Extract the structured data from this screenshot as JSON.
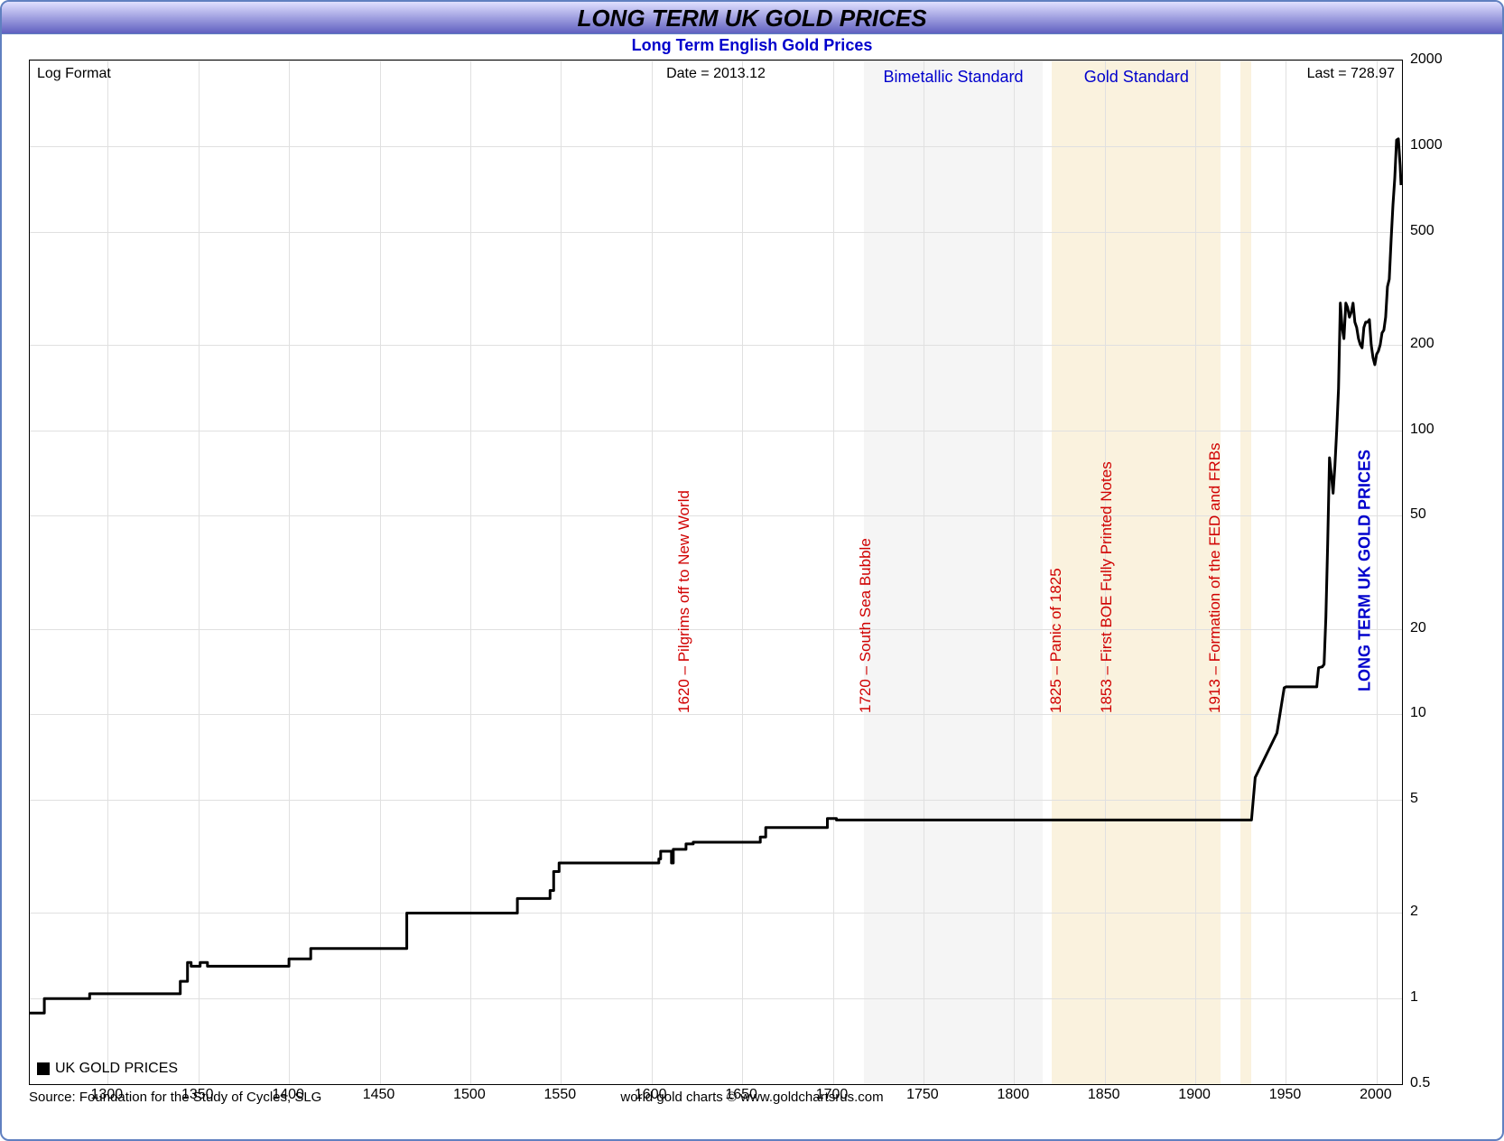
{
  "title": "LONG TERM UK GOLD PRICES",
  "subtitle": "Long Term English Gold Prices",
  "right_axis_label": "LONG TERM UK GOLD PRICES",
  "info": {
    "format_label": "Log Format",
    "date_label": "Date = 2013.12",
    "last_label": "Last = 728.97"
  },
  "legend": {
    "swatch_color": "#000000",
    "label": "UK GOLD PRICES"
  },
  "footer": {
    "source": "Source: Foundation for the Study of Cycles, SLG",
    "credit": "world gold charts © www.goldchartsrus.com"
  },
  "chart": {
    "type": "line",
    "scale_y": "log",
    "xlim": [
      1257,
      2014
    ],
    "ylim": [
      0.5,
      2000
    ],
    "line_color": "#000000",
    "line_width": 3,
    "background_color": "#ffffff",
    "grid_color": "#e0e0e0",
    "xticks": [
      1300,
      1350,
      1400,
      1450,
      1500,
      1550,
      1600,
      1650,
      1700,
      1750,
      1800,
      1850,
      1900,
      1950,
      2000
    ],
    "yticks": [
      0.5,
      1,
      2,
      5,
      10,
      20,
      50,
      100,
      200,
      500,
      1000,
      2000
    ],
    "eras": [
      {
        "label": "Bimetallic Standard",
        "start": 1717,
        "end": 1816,
        "color": "#efefef"
      },
      {
        "label": "Gold Standard",
        "start": 1821,
        "end": 1914,
        "color": "#f7e9c8"
      },
      {
        "label": "",
        "start": 1925,
        "end": 1931,
        "color": "#f7e9c8"
      }
    ],
    "events": [
      {
        "year": 1620,
        "label": "1620 – Pilgrims off to New World"
      },
      {
        "year": 1720,
        "label": "1720 – South Sea Bubble"
      },
      {
        "year": 1825,
        "label": "1825 – Panic of 1825"
      },
      {
        "year": 1853,
        "label": "1853 – First BOE Fully Printed Notes"
      },
      {
        "year": 1913,
        "label": "1913 – Formation of the FED and FRBs"
      }
    ],
    "series": [
      [
        1257,
        0.89
      ],
      [
        1265,
        0.89
      ],
      [
        1265,
        1.0
      ],
      [
        1290,
        1.0
      ],
      [
        1290,
        1.04
      ],
      [
        1340,
        1.04
      ],
      [
        1340,
        1.15
      ],
      [
        1344,
        1.15
      ],
      [
        1344,
        1.34
      ],
      [
        1346,
        1.34
      ],
      [
        1346,
        1.3
      ],
      [
        1351,
        1.3
      ],
      [
        1351,
        1.34
      ],
      [
        1355,
        1.34
      ],
      [
        1355,
        1.3
      ],
      [
        1400,
        1.3
      ],
      [
        1400,
        1.38
      ],
      [
        1412,
        1.38
      ],
      [
        1412,
        1.5
      ],
      [
        1465,
        1.5
      ],
      [
        1465,
        2.0
      ],
      [
        1526,
        2.0
      ],
      [
        1526,
        2.25
      ],
      [
        1544,
        2.25
      ],
      [
        1544,
        2.4
      ],
      [
        1546,
        2.4
      ],
      [
        1546,
        2.8
      ],
      [
        1549,
        2.8
      ],
      [
        1549,
        3.0
      ],
      [
        1604,
        3.0
      ],
      [
        1604,
        3.1
      ],
      [
        1605,
        3.1
      ],
      [
        1605,
        3.3
      ],
      [
        1611,
        3.3
      ],
      [
        1611,
        3.0
      ],
      [
        1612,
        3.0
      ],
      [
        1612,
        3.35
      ],
      [
        1619,
        3.35
      ],
      [
        1619,
        3.5
      ],
      [
        1623,
        3.5
      ],
      [
        1623,
        3.55
      ],
      [
        1660,
        3.55
      ],
      [
        1660,
        3.7
      ],
      [
        1663,
        3.7
      ],
      [
        1663,
        4.0
      ],
      [
        1697,
        4.0
      ],
      [
        1697,
        4.3
      ],
      [
        1702,
        4.3
      ],
      [
        1702,
        4.25
      ],
      [
        1717,
        4.25
      ],
      [
        1931,
        4.25
      ],
      [
        1933,
        6.0
      ],
      [
        1945,
        8.6
      ],
      [
        1949,
        12.4
      ],
      [
        1950,
        12.5
      ],
      [
        1955,
        12.5
      ],
      [
        1960,
        12.5
      ],
      [
        1965,
        12.5
      ],
      [
        1967,
        12.5
      ],
      [
        1968,
        14.6
      ],
      [
        1970,
        14.7
      ],
      [
        1971,
        15.0
      ],
      [
        1972,
        22.0
      ],
      [
        1973,
        40.0
      ],
      [
        1974,
        80.0
      ],
      [
        1975,
        70.0
      ],
      [
        1976,
        60.0
      ],
      [
        1977,
        75.0
      ],
      [
        1978,
        100.0
      ],
      [
        1979,
        140.0
      ],
      [
        1980,
        280.0
      ],
      [
        1981,
        230.0
      ],
      [
        1982,
        210.0
      ],
      [
        1983,
        280.0
      ],
      [
        1984,
        270.0
      ],
      [
        1985,
        250.0
      ],
      [
        1986,
        260.0
      ],
      [
        1987,
        280.0
      ],
      [
        1988,
        240.0
      ],
      [
        1989,
        230.0
      ],
      [
        1990,
        210.0
      ],
      [
        1991,
        200.0
      ],
      [
        1992,
        195.0
      ],
      [
        1993,
        230.0
      ],
      [
        1994,
        240.0
      ],
      [
        1995,
        240.0
      ],
      [
        1996,
        245.0
      ],
      [
        1997,
        200.0
      ],
      [
        1998,
        180.0
      ],
      [
        1999,
        170.0
      ],
      [
        2000,
        185.0
      ],
      [
        2001,
        190.0
      ],
      [
        2002,
        200.0
      ],
      [
        2003,
        220.0
      ],
      [
        2004,
        225.0
      ],
      [
        2005,
        250.0
      ],
      [
        2006,
        320.0
      ],
      [
        2007,
        340.0
      ],
      [
        2008,
        470.0
      ],
      [
        2009,
        620.0
      ],
      [
        2010,
        770.0
      ],
      [
        2011,
        1050.0
      ],
      [
        2012,
        1060.0
      ],
      [
        2013,
        850.0
      ],
      [
        2013.5,
        728.97
      ]
    ]
  },
  "colors": {
    "frame_border": "#6080c0",
    "title_gradient_top": "#e0e0ff",
    "title_gradient_mid": "#a0a0e0",
    "title_gradient_bot": "#6060c0",
    "subtitle": "#0000cc",
    "event_text": "#d00000"
  }
}
